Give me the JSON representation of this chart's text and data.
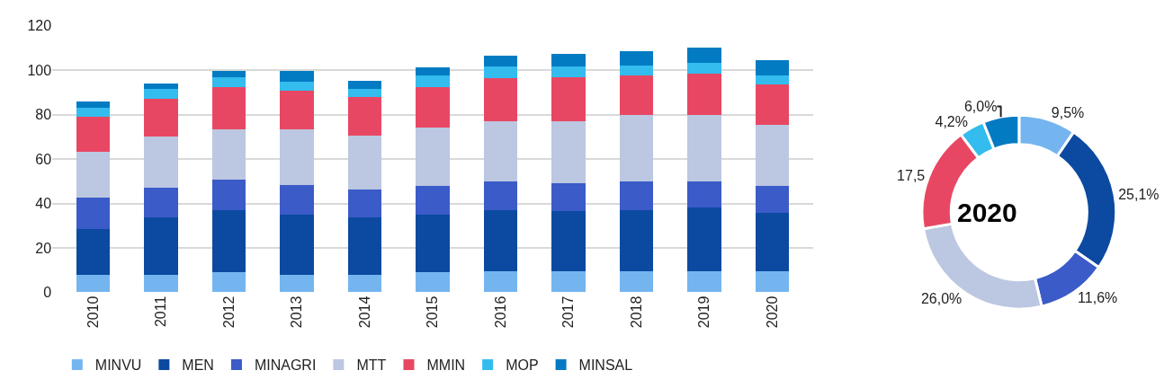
{
  "chart_data": [
    {
      "type": "bar",
      "stacked": true,
      "categories": [
        "2010",
        "2011",
        "2012",
        "2013",
        "2014",
        "2015",
        "2016",
        "2017",
        "2018",
        "2019",
        "2020"
      ],
      "series": [
        {
          "name": "MINVU",
          "color": "#74b5f0",
          "values": [
            8.0,
            8.0,
            9.0,
            8.0,
            8.0,
            9.0,
            9.6,
            9.6,
            9.6,
            9.6,
            9.6
          ]
        },
        {
          "name": "MEN",
          "color": "#0b4aa0",
          "values": [
            20.6,
            25.7,
            27.9,
            26.9,
            25.7,
            26.0,
            27.3,
            27.0,
            27.3,
            28.6,
            26.1
          ]
        },
        {
          "name": "MINAGRI",
          "color": "#3b5bc8",
          "values": [
            14.2,
            13.4,
            14.0,
            13.6,
            12.6,
            13.1,
            13.2,
            12.6,
            13.2,
            11.9,
            12.4
          ]
        },
        {
          "name": "MTT",
          "color": "#bcc7e1",
          "values": [
            20.4,
            22.9,
            22.4,
            24.8,
            24.1,
            26.3,
            27.1,
            28.0,
            29.6,
            29.6,
            27.3
          ]
        },
        {
          "name": "MMIN",
          "color": "#e84763",
          "values": [
            16.0,
            17.0,
            19.0,
            17.6,
            17.5,
            17.9,
            19.1,
            19.5,
            17.9,
            18.9,
            18.4
          ]
        },
        {
          "name": "MOP",
          "color": "#33bced",
          "values": [
            4.1,
            4.4,
            4.5,
            3.9,
            3.5,
            5.4,
            5.3,
            4.9,
            4.4,
            4.9,
            3.9
          ]
        },
        {
          "name": "MINSAL",
          "color": "#037bc3",
          "values": [
            2.7,
            2.8,
            2.7,
            4.7,
            3.8,
            3.8,
            4.8,
            5.7,
            6.7,
            6.7,
            6.7
          ]
        }
      ],
      "ylim": [
        0,
        120
      ],
      "yticks": [
        0,
        20,
        40,
        60,
        80,
        100,
        120
      ],
      "grid": "y",
      "legend": "bottom"
    },
    {
      "type": "donut",
      "title": "2020",
      "categories": [
        null,
        null,
        null,
        null,
        null,
        null,
        null
      ],
      "values": [
        9.5,
        25.1,
        11.6,
        26.0,
        17.5,
        4.2,
        6.0
      ],
      "value_labels": [
        "9,5%",
        "25,1%",
        "11,6%",
        "26,0%",
        "17,5",
        "4,2%",
        "6,0%"
      ],
      "colors": [
        "#74b5f0",
        "#0b4aa0",
        "#3b5bc8",
        "#bcc7e1",
        "#e84763",
        "#33bced",
        "#037bc3"
      ]
    }
  ]
}
